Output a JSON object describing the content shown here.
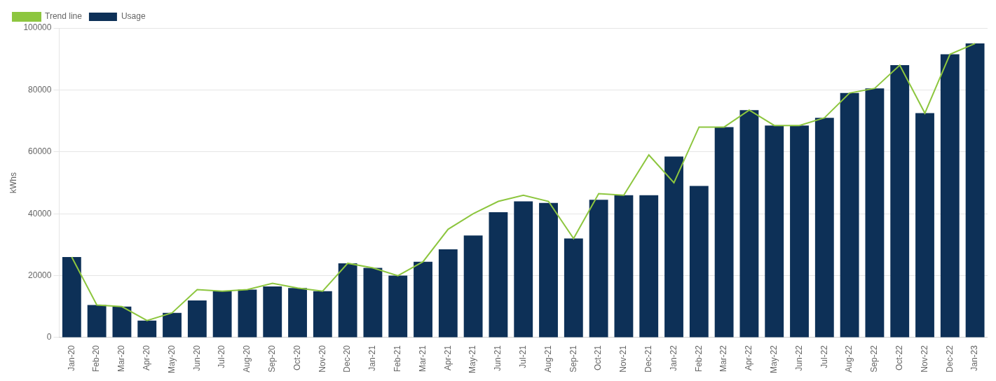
{
  "chart_data": {
    "type": "bar",
    "categories": [
      "Jan-20",
      "Feb-20",
      "Mar-20",
      "Apr-20",
      "May-20",
      "Jun-20",
      "Jul-20",
      "Aug-20",
      "Sep-20",
      "Oct-20",
      "Nov-20",
      "Dec-20",
      "Jan-21",
      "Feb-21",
      "Mar-21",
      "Apr-21",
      "May-21",
      "Jun-21",
      "Jul-21",
      "Aug-21",
      "Sep-21",
      "Oct-21",
      "Nov-21",
      "Dec-21",
      "Jan-22",
      "Feb-22",
      "Mar-22",
      "Apr-22",
      "May-22",
      "Jun-22",
      "Jul-22",
      "Aug-22",
      "Sep-22",
      "Oct-22",
      "Nov-22",
      "Dec-22",
      "Jan-23"
    ],
    "series": [
      {
        "name": "Usage",
        "type": "bar",
        "color": "#0d3057",
        "values": [
          26000,
          10500,
          10000,
          5500,
          8000,
          12000,
          15000,
          15500,
          16500,
          16000,
          15000,
          24000,
          22500,
          20000,
          24500,
          28500,
          33000,
          40500,
          44000,
          43500,
          32000,
          44500,
          46000,
          46000,
          58500,
          49000,
          68000,
          73500,
          68500,
          68500,
          71000,
          79000,
          80500,
          88000,
          72500,
          91500,
          95000
        ]
      },
      {
        "name": "Trend line",
        "type": "line",
        "color": "#8dc63f",
        "values": [
          26000,
          10500,
          10000,
          5500,
          8000,
          15500,
          15000,
          15500,
          17500,
          16000,
          15000,
          24000,
          22500,
          20000,
          24500,
          35000,
          40000,
          44000,
          46000,
          44000,
          32000,
          46500,
          46000,
          59000,
          50000,
          68000,
          68000,
          73500,
          68500,
          68500,
          71000,
          79000,
          80500,
          88000,
          72500,
          91500,
          95000
        ]
      }
    ],
    "ylabel": "kWhs",
    "ylim": [
      0,
      100000
    ],
    "yticks": [
      0,
      20000,
      40000,
      60000,
      80000,
      100000
    ],
    "grid": true,
    "legend": "upper left"
  }
}
